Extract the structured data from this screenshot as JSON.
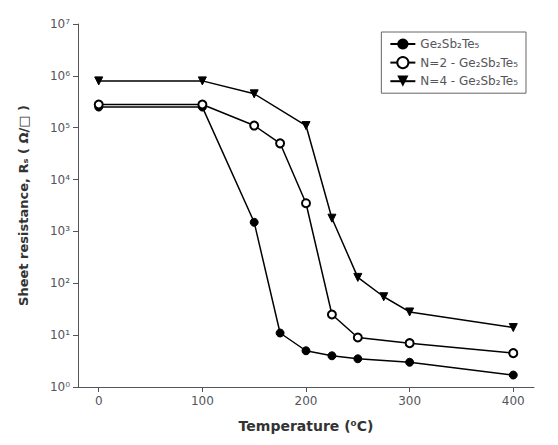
{
  "chart_data": {
    "type": "line",
    "xlabel": "Temperature (⁰C)",
    "ylabel": "Sheet resistance, Rₛ ( Ω/□ )",
    "series": [
      {
        "name": "Ge₂Sb₂Te₅",
        "color": "black",
        "marker": "circle",
        "x": [
          0,
          100,
          150,
          175,
          200,
          225,
          250,
          300,
          400
        ],
        "values": [
          250000,
          250000,
          1500,
          11,
          5,
          4,
          3.5,
          3,
          1.7
        ]
      },
      {
        "name": "N=2 - Ge₂Sb₂Te₅",
        "color": "black",
        "marker": "empty circle",
        "x": [
          0,
          100,
          150,
          175,
          200,
          225,
          250,
          300,
          400
        ],
        "values": [
          280000,
          280000,
          110000,
          50000,
          3500,
          25,
          9,
          7,
          4.5
        ]
      },
      {
        "name": "N=4 - Ge₂Sb₂Te₅",
        "color": "black",
        "marker": "down triangle",
        "x": [
          0,
          100,
          150,
          200,
          225,
          250,
          275,
          300,
          400
        ],
        "values": [
          800000,
          800000,
          450000,
          110000,
          1800,
          130,
          55,
          28,
          14
        ]
      }
    ],
    "xlim": [
      -20,
      420
    ],
    "xticks": [
      0,
      100,
      200,
      300,
      400
    ],
    "ylim": [
      1,
      10000000
    ],
    "yticks": [
      {
        "value": 1,
        "label": "10⁰"
      },
      {
        "value": 10,
        "label": "10¹"
      },
      {
        "value": 100,
        "label": "10²"
      },
      {
        "value": 1000,
        "label": "10³"
      },
      {
        "value": 10000,
        "label": "10⁴"
      },
      {
        "value": 100000,
        "label": "10⁵"
      },
      {
        "value": 1000000,
        "label": "10⁶"
      },
      {
        "value": 10000000,
        "label": "10⁷"
      }
    ],
    "log": "y",
    "legend": "upper right",
    "grid": false
  }
}
